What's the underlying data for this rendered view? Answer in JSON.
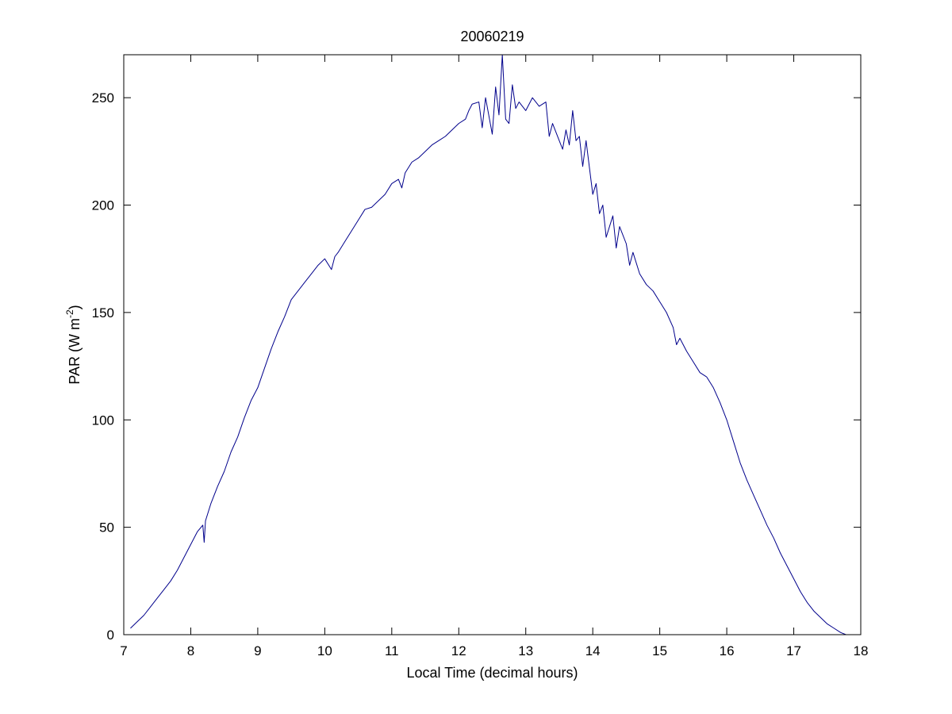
{
  "chart_data": {
    "type": "line",
    "title": "20060219",
    "xlabel": "Local Time (decimal hours)",
    "ylabel": {
      "prefix": "PAR (W m",
      "superscript": "-2",
      "suffix": ")"
    },
    "xlim": [
      7,
      18
    ],
    "ylim": [
      0,
      270
    ],
    "xticks": [
      7,
      8,
      9,
      10,
      11,
      12,
      13,
      14,
      15,
      16,
      17,
      18
    ],
    "yticks": [
      0,
      50,
      100,
      150,
      200,
      250
    ],
    "grid": false,
    "legend": "none",
    "series": [
      {
        "color": "#00008b",
        "x": [
          7.1,
          7.2,
          7.3,
          7.4,
          7.5,
          7.6,
          7.7,
          7.8,
          7.9,
          8.0,
          8.1,
          8.18,
          8.2,
          8.22,
          8.3,
          8.4,
          8.5,
          8.6,
          8.7,
          8.8,
          8.9,
          9.0,
          9.1,
          9.2,
          9.3,
          9.4,
          9.5,
          9.6,
          9.7,
          9.8,
          9.9,
          10.0,
          10.1,
          10.15,
          10.2,
          10.3,
          10.4,
          10.5,
          10.6,
          10.7,
          10.8,
          10.9,
          11.0,
          11.1,
          11.15,
          11.2,
          11.3,
          11.4,
          11.5,
          11.6,
          11.7,
          11.8,
          11.9,
          12.0,
          12.1,
          12.15,
          12.2,
          12.3,
          12.35,
          12.4,
          12.5,
          12.55,
          12.6,
          12.65,
          12.7,
          12.75,
          12.8,
          12.85,
          12.9,
          13.0,
          13.1,
          13.2,
          13.3,
          13.35,
          13.4,
          13.5,
          13.55,
          13.6,
          13.65,
          13.7,
          13.75,
          13.8,
          13.85,
          13.9,
          14.0,
          14.05,
          14.1,
          14.15,
          14.2,
          14.3,
          14.35,
          14.4,
          14.5,
          14.55,
          14.6,
          14.7,
          14.8,
          14.9,
          15.0,
          15.1,
          15.2,
          15.25,
          15.3,
          15.4,
          15.5,
          15.6,
          15.7,
          15.8,
          15.9,
          16.0,
          16.1,
          16.2,
          16.3,
          16.4,
          16.5,
          16.6,
          16.7,
          16.8,
          16.9,
          17.0,
          17.1,
          17.2,
          17.3,
          17.4,
          17.5,
          17.6,
          17.7,
          17.78
        ],
        "y": [
          3,
          6,
          9,
          13,
          17,
          21,
          25,
          30,
          36,
          42,
          48,
          51,
          43,
          53,
          61,
          69,
          76,
          85,
          92,
          101,
          109,
          115,
          124,
          133,
          141,
          148,
          156,
          160,
          164,
          168,
          172,
          175,
          170,
          176,
          178,
          183,
          188,
          193,
          198,
          199,
          202,
          205,
          210,
          212,
          208,
          215,
          220,
          222,
          225,
          228,
          230,
          232,
          235,
          238,
          240,
          244,
          247,
          248,
          236,
          250,
          233,
          255,
          242,
          270,
          240,
          238,
          256,
          245,
          248,
          244,
          250,
          246,
          248,
          232,
          238,
          230,
          226,
          235,
          228,
          244,
          230,
          232,
          218,
          230,
          205,
          210,
          196,
          200,
          185,
          195,
          180,
          190,
          182,
          172,
          178,
          168,
          163,
          160,
          155,
          150,
          143,
          135,
          138,
          132,
          127,
          122,
          120,
          115,
          108,
          100,
          90,
          80,
          72,
          65,
          58,
          51,
          45,
          38,
          32,
          26,
          20,
          15,
          11,
          8,
          5,
          3,
          1,
          0
        ]
      }
    ]
  }
}
